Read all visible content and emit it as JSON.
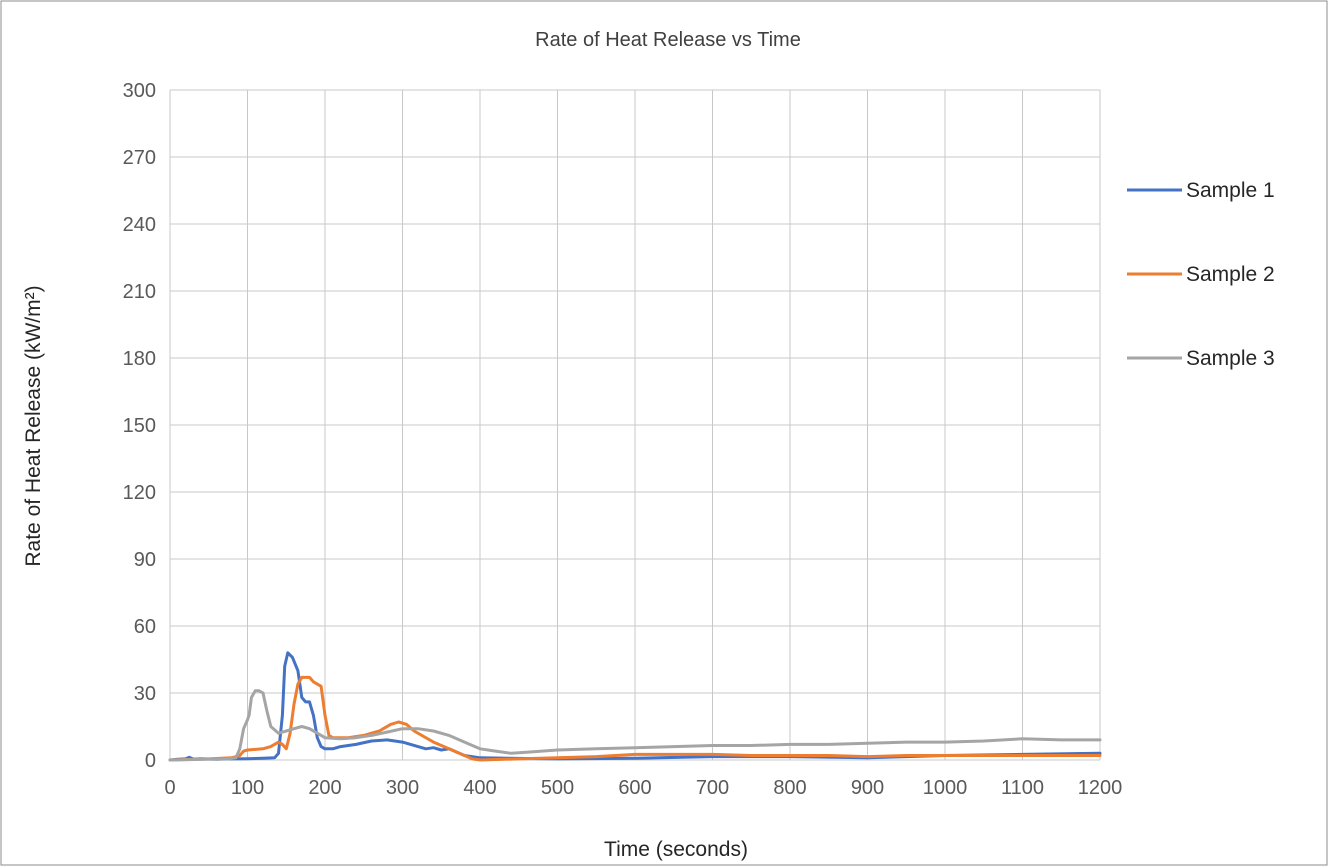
{
  "colors": {
    "sample1": "#4472C4",
    "sample2": "#ED7D31",
    "sample3": "#A5A5A5",
    "grid": "#C8C8C8",
    "border": "#8C8C8C"
  },
  "chart_data": {
    "type": "line",
    "title": "Rate of Heat Release vs Time",
    "xlabel": "Time (seconds)",
    "ylabel": "Rate of Heat Release (kW/m²)",
    "xlim": [
      0,
      1200
    ],
    "ylim": [
      0,
      300
    ],
    "x_ticks": [
      0,
      100,
      200,
      300,
      400,
      500,
      600,
      700,
      800,
      900,
      1000,
      1100,
      1200
    ],
    "y_ticks": [
      0,
      30,
      60,
      90,
      120,
      150,
      180,
      210,
      240,
      270,
      300
    ],
    "grid": true,
    "legend_position": "right",
    "series": [
      {
        "name": "Sample 1",
        "color": "#4472C4",
        "points": [
          [
            0,
            0
          ],
          [
            10,
            0.3
          ],
          [
            20,
            0.5
          ],
          [
            25,
            1.2
          ],
          [
            30,
            0.4
          ],
          [
            40,
            0.6
          ],
          [
            60,
            0.3
          ],
          [
            80,
            0.5
          ],
          [
            100,
            0.6
          ],
          [
            120,
            0.8
          ],
          [
            135,
            1
          ],
          [
            140,
            3
          ],
          [
            145,
            20
          ],
          [
            148,
            42
          ],
          [
            152,
            48
          ],
          [
            158,
            46
          ],
          [
            165,
            40
          ],
          [
            170,
            28
          ],
          [
            175,
            26
          ],
          [
            180,
            26
          ],
          [
            185,
            20
          ],
          [
            190,
            10
          ],
          [
            195,
            6
          ],
          [
            200,
            5
          ],
          [
            210,
            5
          ],
          [
            220,
            6
          ],
          [
            240,
            7
          ],
          [
            260,
            8.5
          ],
          [
            280,
            9
          ],
          [
            300,
            8
          ],
          [
            320,
            6
          ],
          [
            330,
            5
          ],
          [
            340,
            5.5
          ],
          [
            350,
            4.5
          ],
          [
            360,
            5
          ],
          [
            380,
            2
          ],
          [
            400,
            1
          ],
          [
            500,
            0.5
          ],
          [
            600,
            0.8
          ],
          [
            700,
            1.5
          ],
          [
            800,
            1.5
          ],
          [
            900,
            1
          ],
          [
            1000,
            2
          ],
          [
            1100,
            2.5
          ],
          [
            1200,
            3
          ]
        ]
      },
      {
        "name": "Sample 2",
        "color": "#ED7D31",
        "points": [
          [
            0,
            0
          ],
          [
            50,
            0.5
          ],
          [
            80,
            1
          ],
          [
            90,
            2
          ],
          [
            95,
            4
          ],
          [
            100,
            4.5
          ],
          [
            120,
            5
          ],
          [
            130,
            6
          ],
          [
            140,
            8
          ],
          [
            145,
            7
          ],
          [
            150,
            5
          ],
          [
            155,
            12
          ],
          [
            160,
            25
          ],
          [
            165,
            34
          ],
          [
            170,
            37
          ],
          [
            180,
            37
          ],
          [
            185,
            35
          ],
          [
            195,
            33
          ],
          [
            200,
            20
          ],
          [
            205,
            11
          ],
          [
            210,
            10
          ],
          [
            230,
            10
          ],
          [
            250,
            11
          ],
          [
            260,
            12
          ],
          [
            270,
            13
          ],
          [
            285,
            16
          ],
          [
            295,
            17
          ],
          [
            305,
            16
          ],
          [
            315,
            13
          ],
          [
            340,
            8
          ],
          [
            360,
            5
          ],
          [
            380,
            2
          ],
          [
            390,
            0.5
          ],
          [
            400,
            0
          ],
          [
            450,
            0.5
          ],
          [
            500,
            1
          ],
          [
            550,
            1.5
          ],
          [
            600,
            2.5
          ],
          [
            650,
            2.5
          ],
          [
            700,
            2.5
          ],
          [
            750,
            2
          ],
          [
            800,
            2
          ],
          [
            850,
            2
          ],
          [
            900,
            1.5
          ],
          [
            950,
            2
          ],
          [
            1000,
            2
          ],
          [
            1100,
            2
          ],
          [
            1200,
            2
          ]
        ]
      },
      {
        "name": "Sample 3",
        "color": "#A5A5A5",
        "points": [
          [
            0,
            0
          ],
          [
            50,
            0.3
          ],
          [
            75,
            0.5
          ],
          [
            85,
            1
          ],
          [
            90,
            5
          ],
          [
            95,
            14
          ],
          [
            100,
            18
          ],
          [
            102,
            20
          ],
          [
            105,
            28
          ],
          [
            110,
            31
          ],
          [
            115,
            31
          ],
          [
            120,
            30
          ],
          [
            125,
            22
          ],
          [
            130,
            15
          ],
          [
            140,
            12
          ],
          [
            150,
            13
          ],
          [
            160,
            14
          ],
          [
            170,
            15
          ],
          [
            180,
            14
          ],
          [
            190,
            12
          ],
          [
            200,
            10
          ],
          [
            220,
            9.5
          ],
          [
            240,
            10
          ],
          [
            260,
            11
          ],
          [
            280,
            12.5
          ],
          [
            300,
            14
          ],
          [
            320,
            14
          ],
          [
            340,
            13
          ],
          [
            360,
            11
          ],
          [
            380,
            8
          ],
          [
            400,
            5
          ],
          [
            420,
            4
          ],
          [
            440,
            3
          ],
          [
            460,
            3.5
          ],
          [
            500,
            4.5
          ],
          [
            550,
            5
          ],
          [
            600,
            5.5
          ],
          [
            650,
            6
          ],
          [
            700,
            6.5
          ],
          [
            750,
            6.5
          ],
          [
            800,
            7
          ],
          [
            850,
            7
          ],
          [
            900,
            7.5
          ],
          [
            950,
            8
          ],
          [
            1000,
            8
          ],
          [
            1050,
            8.5
          ],
          [
            1100,
            9.5
          ],
          [
            1150,
            9
          ],
          [
            1200,
            9
          ]
        ]
      }
    ]
  }
}
